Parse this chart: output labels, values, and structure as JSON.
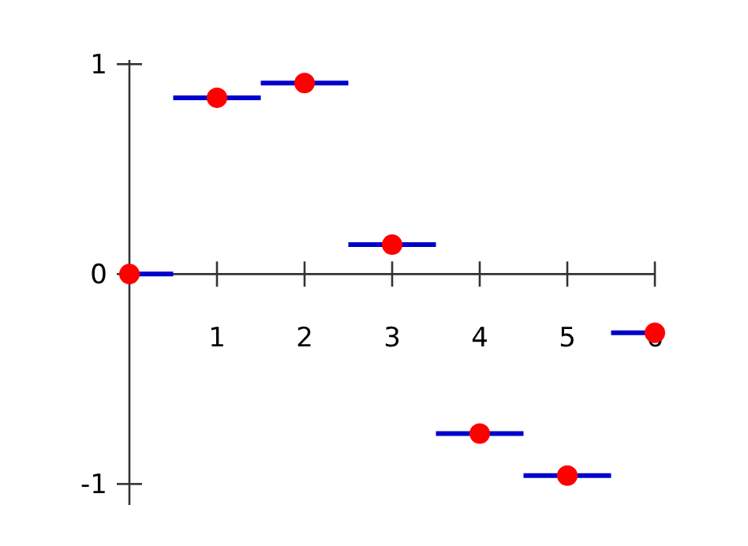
{
  "chart_data": {
    "type": "scatter",
    "xlim": [
      0,
      6
    ],
    "ylim": [
      -1.1,
      1.02
    ],
    "xticks": [
      1,
      2,
      3,
      4,
      5,
      6
    ],
    "yticks": [
      -1,
      0,
      1
    ],
    "grid": false,
    "marker": "circle",
    "series": [
      {
        "color": "#ff0000",
        "x": [
          0,
          1,
          2,
          3,
          4,
          5,
          6
        ],
        "values": [
          0,
          0.84,
          0.91,
          0.14,
          -0.76,
          -0.96,
          -0.28
        ],
        "xerrors": [
          [
            0,
            0.5
          ],
          0.5,
          0.5,
          0.5,
          0.5,
          0.5,
          [
            5.5,
            6
          ]
        ]
      }
    ]
  }
}
